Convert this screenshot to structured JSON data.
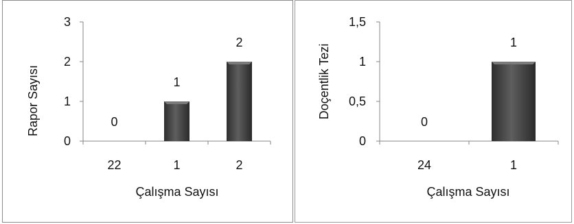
{
  "chart_data": [
    {
      "type": "bar",
      "categories": [
        "22",
        "1",
        "2"
      ],
      "values": [
        0,
        1,
        2
      ],
      "data_labels": [
        "0",
        "1",
        "2"
      ],
      "yticks": [
        "0",
        "1",
        "2",
        "3"
      ],
      "ylim": [
        0,
        3
      ],
      "xlabel": "Çalışma Sayısı",
      "ylabel": "Rapor Sayısı",
      "grid": false,
      "bar_color": "#4a4a4a"
    },
    {
      "type": "bar",
      "categories": [
        "24",
        "1"
      ],
      "values": [
        0,
        1
      ],
      "data_labels": [
        "0",
        "1"
      ],
      "yticks": [
        "0",
        "0,5",
        "1",
        "1,5"
      ],
      "ylim": [
        0,
        1.5
      ],
      "xlabel": "Çalışma Sayısı",
      "ylabel": "Doçentlik Tezi",
      "grid": false,
      "bar_color": "#4a4a4a"
    }
  ]
}
